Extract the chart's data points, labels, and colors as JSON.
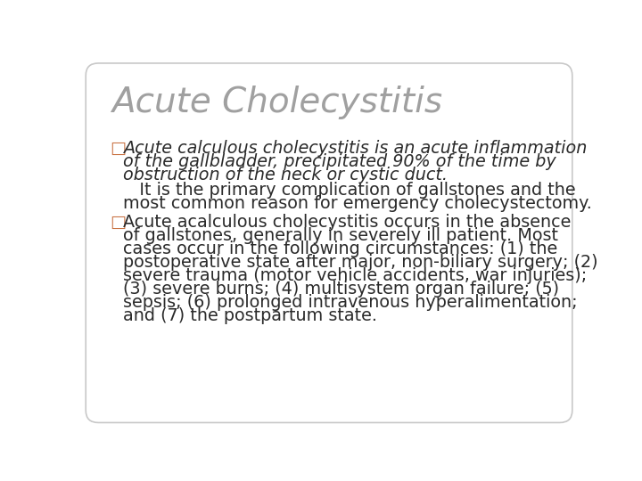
{
  "title": "Acute Cholecystitis",
  "title_color": "#a0a0a0",
  "title_fontsize": 28,
  "bg_color": "#ffffff",
  "border_color": "#c8c8c8",
  "bullet_color": "#c87040",
  "bullet1_italic_line1": "Acute calculous cholecystitis is an acute inflammation",
  "bullet1_italic_line2": "of the gallbladder, precipitated 90% of the time by",
  "bullet1_italic_line3": "obstruction of the neck or cystic duct.",
  "bullet1_normal_line1": "   It is the primary complication of gallstones and the",
  "bullet1_normal_line2": "most common reason for emergency cholecystectomy.",
  "bullet2_line1": "Acute acalculous cholecystitis occurs in the absence",
  "bullet2_line2": "of gallstones, generally in severely ill patient. Most",
  "bullet2_line3": "cases occur in the following circumstances: (1) the",
  "bullet2_line4": "postoperative state after major, non-biliary surgery; (2)",
  "bullet2_line5": "severe trauma (motor vehicle accidents, war injuries);",
  "bullet2_line6": "(3) severe burns; (4) multisystem organ failure; (5)",
  "bullet2_line7": "sepsis; (6) prolonged intravenous hyperalimentation;",
  "bullet2_line8": "and (7) the postpartum state.",
  "text_color": "#2a2a2a",
  "body_fontsize": 13.8
}
